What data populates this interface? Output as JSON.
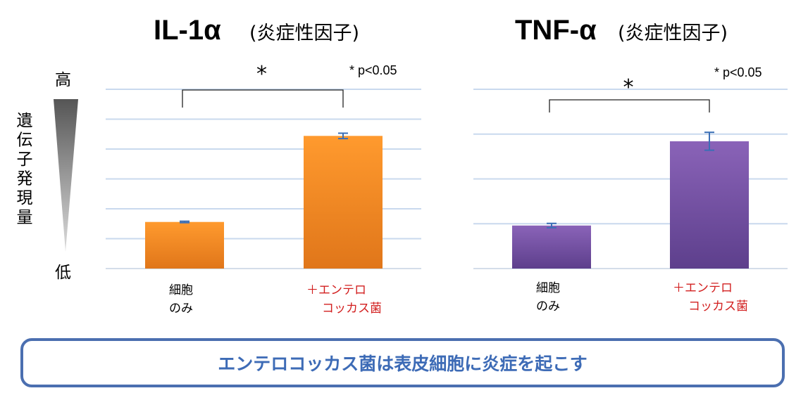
{
  "chart_data": [
    {
      "type": "bar",
      "title": "IL-1α",
      "subtitle": "(炎症性因子)",
      "ylabel": "遺伝子発現量",
      "y_high_label": "高",
      "y_low_label": "低",
      "categories": [
        "細胞\nのみ",
        "＋エンテロ\nコッカス菌"
      ],
      "series": [
        {
          "values": [
            0.26,
            0.74
          ],
          "errors": [
            0.004,
            0.015
          ],
          "color_top": "#ff9a2e",
          "color_bottom": "#e0761a"
        }
      ],
      "ylim": [
        0,
        1
      ],
      "grid": true,
      "significance": {
        "marker": "*",
        "between": [
          0,
          1
        ]
      },
      "annotation": "* p<0.05"
    },
    {
      "type": "bar",
      "title": "TNF-α",
      "subtitle": "(炎症性因子)",
      "categories": [
        "細胞\nのみ",
        "＋エンテロ\nコッカス菌"
      ],
      "series": [
        {
          "values": [
            0.24,
            0.71
          ],
          "errors": [
            0.012,
            0.05
          ],
          "color_top": "#8a63b8",
          "color_bottom": "#5d3f8c"
        }
      ],
      "ylim": [
        0,
        1
      ],
      "grid": true,
      "significance": {
        "marker": "*",
        "between": [
          0,
          1
        ]
      },
      "annotation": "* p<0.05"
    }
  ],
  "conclusion": "エンテロコッカス菌は表皮細胞に炎症を起こす",
  "colors": {
    "grid": "#c9d9ee",
    "axis": "#d4dde9",
    "error_bar": "#3b6fb6",
    "treated_label": "#d21f1f",
    "control_label": "#000000",
    "conclusion_border": "#4b6fb0",
    "conclusion_text": "#3d6bb6"
  }
}
